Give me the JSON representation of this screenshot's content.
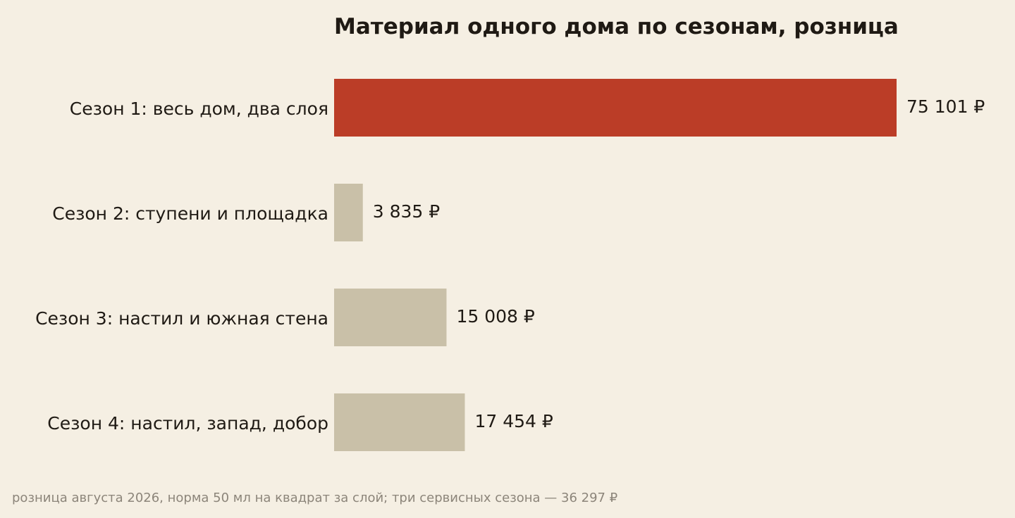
{
  "chart_data": {
    "type": "bar",
    "orientation": "horizontal",
    "title": "Материал одного дома по сезонам, розница",
    "categories": [
      "Сезон 1: весь дом, два слоя",
      "Сезон 2: ступени и площадка",
      "Сезон 3: настил и южная стена",
      "Сезон 4: настил, запад, добор"
    ],
    "values": [
      75101,
      3835,
      15008,
      17454
    ],
    "value_labels": [
      "75 101 ₽",
      "3 835 ₽",
      "15 008 ₽",
      "17 454 ₽"
    ],
    "unit": "₽",
    "xlim": [
      0,
      75101
    ],
    "grid": false,
    "highlight_index": 0,
    "colors": {
      "highlight": "#bb3d27",
      "default": "#c9c0a8",
      "background": "#f5efe3",
      "text": "#1f1a14",
      "footnote": "#8c857a"
    }
  },
  "footnote": "розница августа 2026, норма 50 мл на квадрат за слой; три сервисных сезона — 36 297 ₽"
}
